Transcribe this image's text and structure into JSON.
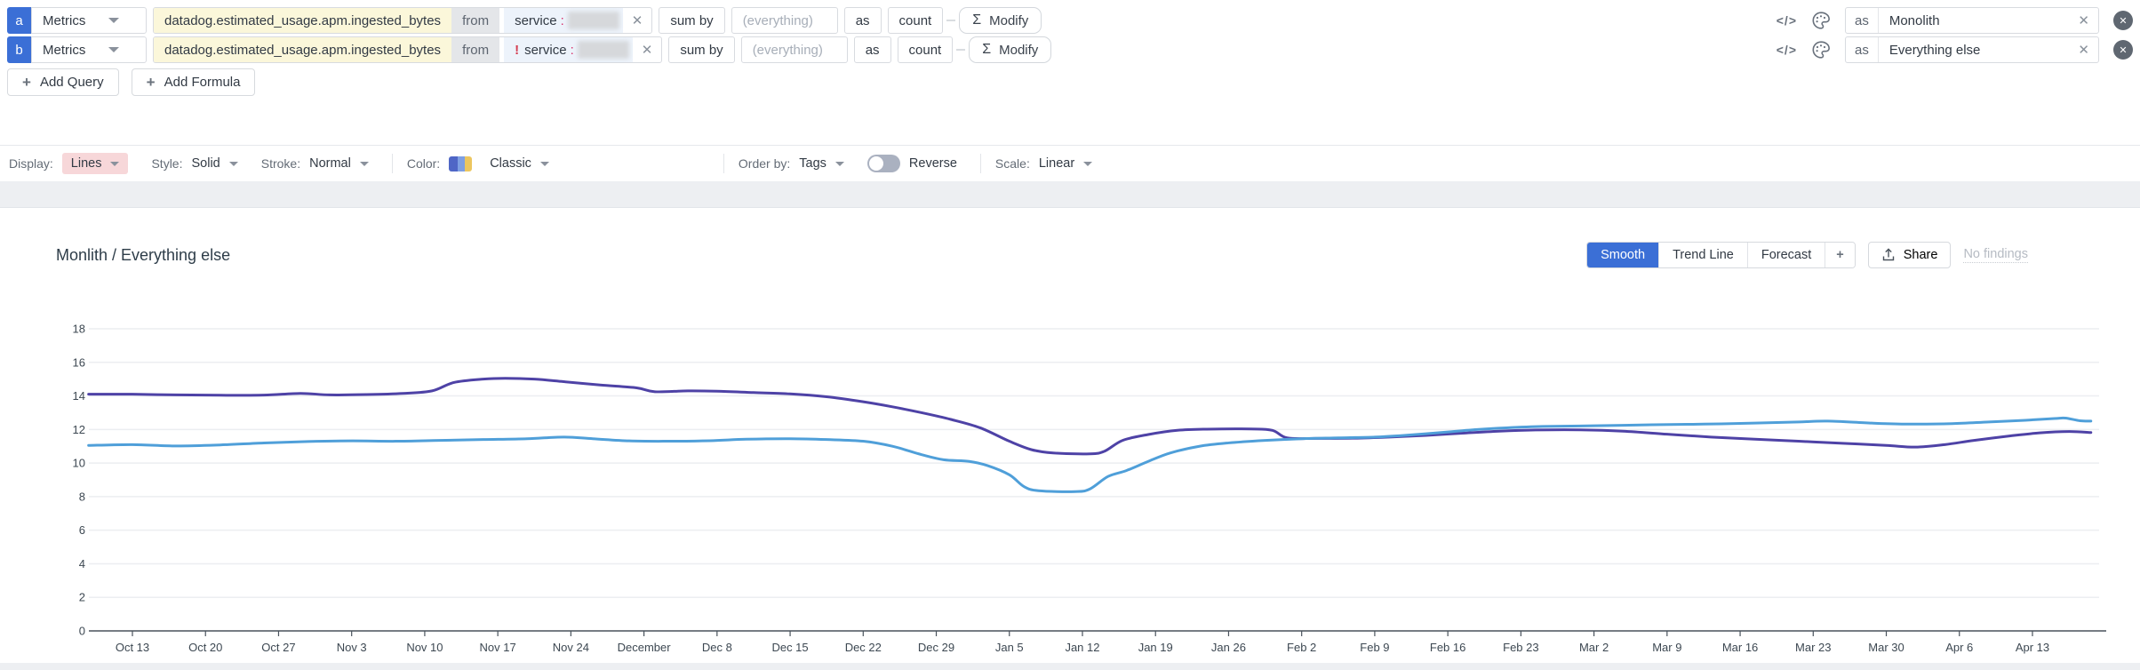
{
  "icons": {
    "clear": "✕",
    "remove": "✕",
    "code": "</>",
    "plus": "+",
    "sigma": "Σ"
  },
  "colors": {
    "badge_blue": "#3b6fd6",
    "active_button_blue": "#3b6fd6",
    "metric_highlight": "#fbf7da",
    "filter_chip": "#edf3fb",
    "display_highlight": "#f7d7d9",
    "series_monolith": "#4e42a6",
    "series_everything_else": "#4f9fd9",
    "swatch_colors": [
      "#4f66c6",
      "#7e9fe3",
      "#ecc65f"
    ]
  },
  "query_rows": [
    {
      "id": "a",
      "source": "Metrics",
      "metric": "datadog.estimated_usage.apm.ingested_bytes",
      "from_label": "from",
      "filter_prefix": "",
      "filter_key": "service",
      "filter_colon": ":",
      "sum_by_label": "sum by",
      "group_by_placeholder": "(everything)",
      "as_label": "as",
      "as_value": "count",
      "modify_label": "Modify",
      "alias_label": "as",
      "alias": "Monolith"
    },
    {
      "id": "b",
      "source": "Metrics",
      "metric": "datadog.estimated_usage.apm.ingested_bytes",
      "from_label": "from",
      "filter_prefix": "!",
      "filter_key": "service",
      "filter_colon": ":",
      "sum_by_label": "sum by",
      "group_by_placeholder": "(everything)",
      "as_label": "as",
      "as_value": "count",
      "modify_label": "Modify",
      "alias_label": "as",
      "alias": "Everything else"
    }
  ],
  "actions": {
    "add_query": "Add Query",
    "add_formula": "Add Formula"
  },
  "options": {
    "display_label": "Display:",
    "display_value": "Lines",
    "style_label": "Style:",
    "style_value": "Solid",
    "stroke_label": "Stroke:",
    "stroke_value": "Normal",
    "color_label": "Color:",
    "color_value": "Classic",
    "order_by_label": "Order by:",
    "order_by_value": "Tags",
    "reverse_label": "Reverse",
    "reverse_state": "off",
    "scale_label": "Scale:",
    "scale_value": "Linear"
  },
  "graph": {
    "title": "Monlith / Everything else",
    "toolbar": {
      "smooth": "Smooth",
      "trend_line": "Trend Line",
      "forecast": "Forecast",
      "plus": "+"
    },
    "active_tool": "Smooth",
    "share_label": "Share",
    "no_findings_label": "No findings"
  },
  "chart_data": {
    "type": "line",
    "title": "Monlith / Everything else",
    "grid": true,
    "legend": "none",
    "ylim": [
      0,
      18
    ],
    "y_ticks": [
      0,
      2,
      4,
      6,
      8,
      10,
      12,
      14,
      16,
      18
    ],
    "x_tick_labels": [
      "Oct 13",
      "Oct 20",
      "Oct 27",
      "Nov 3",
      "Nov 10",
      "Nov 17",
      "Nov 24",
      "December",
      "Dec 8",
      "Dec 15",
      "Dec 22",
      "Dec 29",
      "Jan 5",
      "Jan 12",
      "Jan 19",
      "Jan 26",
      "Feb 2",
      "Feb 9",
      "Feb 16",
      "Feb 23",
      "Mar 2",
      "Mar 9",
      "Mar 16",
      "Mar 23",
      "Mar 30",
      "Apr 6",
      "Apr 13"
    ],
    "x_unit": "weeks (0 = Oct 13, 1 tick per week)",
    "series": [
      {
        "name": "Monolith",
        "color": "#4e42a6",
        "points": [
          [
            -0.6,
            14.1
          ],
          [
            0,
            14.1
          ],
          [
            0.6,
            14.06
          ],
          [
            1.2,
            14.04
          ],
          [
            1.8,
            14.05
          ],
          [
            2.3,
            14.15
          ],
          [
            2.7,
            14.06
          ],
          [
            3.2,
            14.08
          ],
          [
            3.7,
            14.15
          ],
          [
            4.1,
            14.3
          ],
          [
            4.4,
            14.8
          ],
          [
            4.8,
            15.0
          ],
          [
            5.1,
            15.05
          ],
          [
            5.5,
            15.0
          ],
          [
            5.9,
            14.85
          ],
          [
            6.4,
            14.65
          ],
          [
            6.9,
            14.48
          ],
          [
            7.15,
            14.25
          ],
          [
            7.6,
            14.3
          ],
          [
            8,
            14.28
          ],
          [
            8.5,
            14.2
          ],
          [
            9,
            14.12
          ],
          [
            9.5,
            13.95
          ],
          [
            10,
            13.65
          ],
          [
            10.4,
            13.35
          ],
          [
            10.8,
            13.0
          ],
          [
            11.2,
            12.6
          ],
          [
            11.6,
            12.1
          ],
          [
            12,
            11.3
          ],
          [
            12.3,
            10.8
          ],
          [
            12.6,
            10.6
          ],
          [
            13.1,
            10.55
          ],
          [
            13.3,
            10.7
          ],
          [
            13.55,
            11.35
          ],
          [
            13.9,
            11.7
          ],
          [
            14.3,
            11.95
          ],
          [
            14.7,
            12.02
          ],
          [
            15.3,
            12.03
          ],
          [
            15.6,
            11.95
          ],
          [
            15.8,
            11.5
          ],
          [
            16.2,
            11.47
          ],
          [
            16.7,
            11.48
          ],
          [
            17.2,
            11.55
          ],
          [
            17.7,
            11.65
          ],
          [
            18.2,
            11.78
          ],
          [
            18.7,
            11.9
          ],
          [
            19.2,
            11.97
          ],
          [
            19.8,
            11.98
          ],
          [
            20.4,
            11.9
          ],
          [
            21,
            11.72
          ],
          [
            21.6,
            11.55
          ],
          [
            22.2,
            11.42
          ],
          [
            22.8,
            11.3
          ],
          [
            23.4,
            11.18
          ],
          [
            24,
            11.05
          ],
          [
            24.4,
            10.95
          ],
          [
            24.8,
            11.1
          ],
          [
            25.2,
            11.35
          ],
          [
            25.7,
            11.62
          ],
          [
            26.1,
            11.8
          ],
          [
            26.5,
            11.88
          ],
          [
            26.8,
            11.82
          ]
        ]
      },
      {
        "name": "Everything else",
        "color": "#4f9fd9",
        "points": [
          [
            -0.6,
            11.05
          ],
          [
            0,
            11.1
          ],
          [
            0.6,
            11.02
          ],
          [
            1.2,
            11.08
          ],
          [
            1.8,
            11.2
          ],
          [
            2.4,
            11.28
          ],
          [
            3,
            11.32
          ],
          [
            3.6,
            11.3
          ],
          [
            4.2,
            11.35
          ],
          [
            4.8,
            11.4
          ],
          [
            5.4,
            11.45
          ],
          [
            5.9,
            11.55
          ],
          [
            6.3,
            11.45
          ],
          [
            6.8,
            11.32
          ],
          [
            7.3,
            11.3
          ],
          [
            7.9,
            11.33
          ],
          [
            8.4,
            11.42
          ],
          [
            9,
            11.45
          ],
          [
            9.5,
            11.4
          ],
          [
            10,
            11.3
          ],
          [
            10.4,
            11.0
          ],
          [
            10.8,
            10.5
          ],
          [
            11.1,
            10.2
          ],
          [
            11.45,
            10.1
          ],
          [
            11.7,
            9.85
          ],
          [
            12,
            9.3
          ],
          [
            12.2,
            8.6
          ],
          [
            12.4,
            8.35
          ],
          [
            12.9,
            8.3
          ],
          [
            13.1,
            8.45
          ],
          [
            13.35,
            9.2
          ],
          [
            13.6,
            9.55
          ],
          [
            13.9,
            10.1
          ],
          [
            14.2,
            10.6
          ],
          [
            14.6,
            11.0
          ],
          [
            15,
            11.2
          ],
          [
            15.5,
            11.35
          ],
          [
            16,
            11.45
          ],
          [
            16.5,
            11.5
          ],
          [
            17,
            11.55
          ],
          [
            17.4,
            11.65
          ],
          [
            18,
            11.85
          ],
          [
            18.4,
            12.0
          ],
          [
            18.8,
            12.1
          ],
          [
            19.3,
            12.18
          ],
          [
            20,
            12.22
          ],
          [
            20.8,
            12.28
          ],
          [
            21.5,
            12.32
          ],
          [
            22.2,
            12.38
          ],
          [
            22.8,
            12.45
          ],
          [
            23.2,
            12.5
          ],
          [
            23.8,
            12.38
          ],
          [
            24.3,
            12.32
          ],
          [
            24.9,
            12.35
          ],
          [
            25.4,
            12.45
          ],
          [
            25.9,
            12.55
          ],
          [
            26.3,
            12.65
          ],
          [
            26.45,
            12.68
          ],
          [
            26.65,
            12.52
          ],
          [
            26.8,
            12.5
          ]
        ]
      }
    ]
  }
}
